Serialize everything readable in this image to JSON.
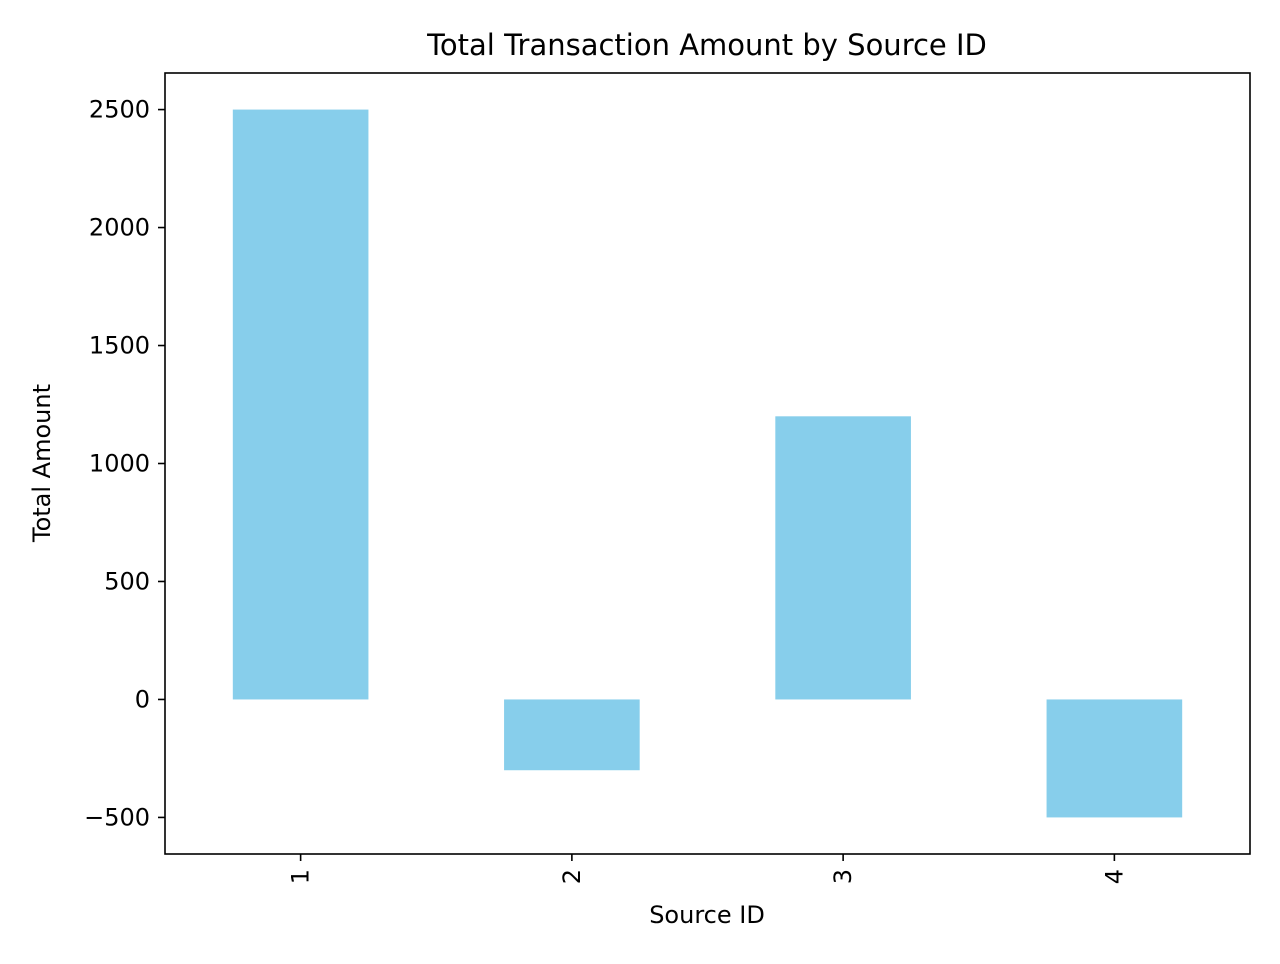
{
  "chart_data": {
    "type": "bar",
    "title": "Total Transaction Amount by Source ID",
    "xlabel": "Source ID",
    "ylabel": "Total Amount",
    "categories": [
      "1",
      "2",
      "3",
      "4"
    ],
    "values": [
      2500,
      -300,
      1200,
      -500
    ],
    "ylim": [
      -655,
      2655
    ],
    "yticks": [
      -500,
      0,
      500,
      1000,
      1500,
      2000,
      2500
    ],
    "ytick_labels": [
      "−500",
      "0",
      "500",
      "1000",
      "1500",
      "2000",
      "2500"
    ],
    "grid": false,
    "legend": "none",
    "x_tick_rotation": "vertical",
    "bar_color": "#87ceeb"
  }
}
